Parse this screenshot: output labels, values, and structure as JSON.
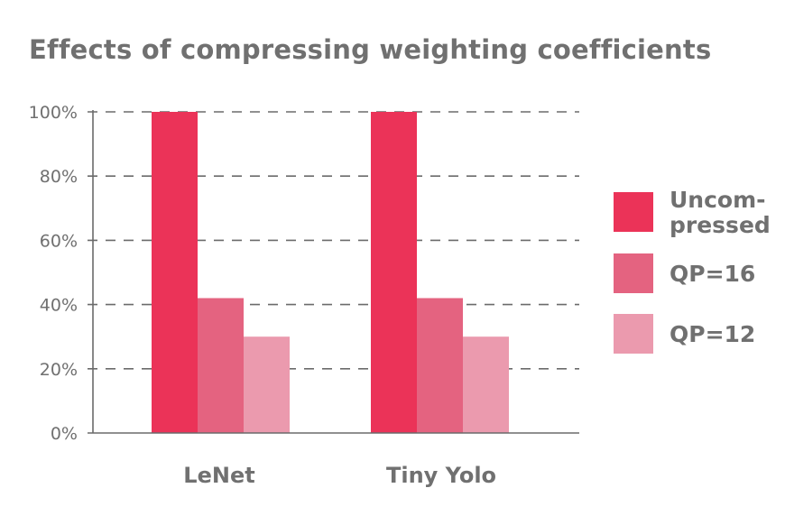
{
  "chart_data": {
    "type": "bar",
    "title": "Effects of compressing weighting coefficients",
    "categories": [
      "LeNet",
      "Tiny Yolo"
    ],
    "series": [
      {
        "name": "Uncom-pressed",
        "name_lines": [
          "Uncom-",
          "pressed"
        ],
        "values": [
          100,
          100
        ],
        "color": "#EB3358"
      },
      {
        "name": "QP=16",
        "name_lines": [
          "QP=16"
        ],
        "values": [
          42,
          42
        ],
        "color": "#E46380"
      },
      {
        "name": "QP=12",
        "name_lines": [
          "QP=12"
        ],
        "values": [
          30,
          30
        ],
        "color": "#EB9AAE"
      }
    ],
    "ylim": [
      0,
      100
    ],
    "yticks": [
      0,
      20,
      40,
      60,
      80,
      100
    ],
    "ytick_labels": [
      "0%",
      "20%",
      "40%",
      "60%",
      "80%",
      "100%"
    ],
    "grid": "dashed-horizontal",
    "legend_position": "right",
    "xlabel": "",
    "ylabel": ""
  }
}
